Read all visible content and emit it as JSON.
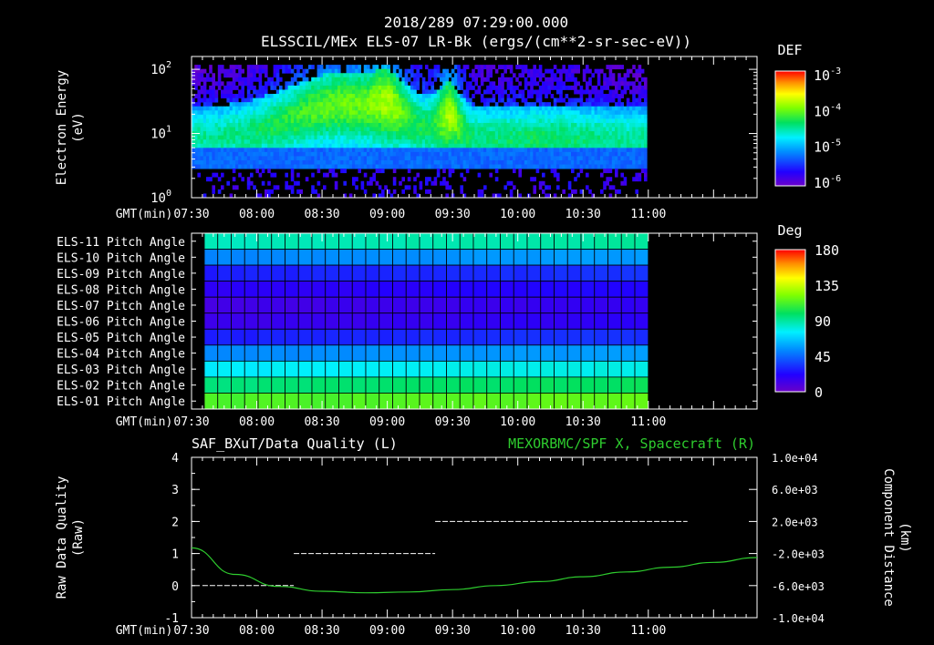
{
  "header": {
    "timestamp": "2018/289 07:29:00.000",
    "panel1_title": "ELSSCIL/MEx ELS-07 LR-Bk  (ergs/(cm**2-sr-sec-eV))"
  },
  "time_axis": {
    "label": "GMT(min)",
    "ticks": [
      "07:30",
      "08:00",
      "08:30",
      "09:00",
      "09:30",
      "10:00",
      "10:30",
      "11:00"
    ],
    "range_min": [
      0,
      260
    ],
    "data_end_min": 210
  },
  "chart_data": [
    {
      "type": "heatmap",
      "name": "electron-spectrogram",
      "ylabel_line1": "Electron Energy",
      "ylabel_line2": "(eV)",
      "ytick_mantissa": "10",
      "yticks": [
        {
          "exp": "0",
          "log10": 0
        },
        {
          "exp": "1",
          "log10": 1
        },
        {
          "exp": "2",
          "log10": 2
        }
      ],
      "ylim_log10": [
        0,
        2.2
      ],
      "colorbar": {
        "title": "DEF",
        "mantissa": "10",
        "labels": [
          {
            "exp": "-3",
            "log10": -3
          },
          {
            "exp": "-4",
            "log10": -4
          },
          {
            "exp": "-5",
            "log10": -5
          },
          {
            "exp": "-6",
            "log10": -6
          }
        ],
        "range_log10": [
          -6.1,
          -2.9
        ]
      }
    },
    {
      "type": "heatmap",
      "name": "pitch-angle",
      "rows": [
        "ELS-11 Pitch Angle",
        "ELS-10 Pitch Angle",
        "ELS-09 Pitch Angle",
        "ELS-08 Pitch Angle",
        "ELS-07 Pitch Angle",
        "ELS-06 Pitch Angle",
        "ELS-05 Pitch Angle",
        "ELS-04 Pitch Angle",
        "ELS-03 Pitch Angle",
        "ELS-02 Pitch Angle",
        "ELS-01 Pitch Angle"
      ],
      "row_values_deg": [
        85,
        52,
        28,
        18,
        12,
        14,
        28,
        52,
        75,
        95,
        112
      ],
      "colorbar": {
        "title": "Deg",
        "labels": [
          "180",
          "135",
          "90",
          "45",
          "0"
        ],
        "range": [
          0,
          180
        ]
      }
    },
    {
      "type": "line",
      "name": "data-quality-and-distance",
      "title_left": "SAF_BXuT/Data Quality (L)",
      "title_right": "MEXORBMC/SPF X, Spacecraft (R)",
      "ylabel_left_line1": "Raw Data Quality",
      "ylabel_left_line2": "(Raw)",
      "ylabel_right_line1": "Component Distance",
      "ylabel_right_line2": "(km)",
      "yticks_left": [
        "4",
        "3",
        "2",
        "1",
        "0",
        "-1"
      ],
      "ylim_left": [
        -1,
        4
      ],
      "yticks_right": [
        "1.0e+04",
        "6.0e+03",
        "2.0e+03",
        "-2.0e+03",
        "-6.0e+03",
        "-1.0e+04"
      ],
      "ylim_right": [
        -10000,
        10000
      ],
      "quality_series": [
        {
          "x_range_min": [
            5,
            47
          ],
          "y": 0
        },
        {
          "x_range_min": [
            47,
            112
          ],
          "y": 1
        },
        {
          "x_range_min": [
            112,
            228
          ],
          "y": 2
        }
      ],
      "distance_series": {
        "color": "#2ecc2e",
        "x_min": [
          0,
          20,
          40,
          60,
          80,
          100,
          120,
          140,
          160,
          180,
          200,
          220,
          240,
          260
        ],
        "y_km": [
          -1300,
          -4600,
          -6100,
          -6700,
          -6900,
          -6800,
          -6500,
          -6000,
          -5500,
          -4900,
          -4300,
          -3700,
          -3100,
          -2500
        ]
      }
    }
  ]
}
